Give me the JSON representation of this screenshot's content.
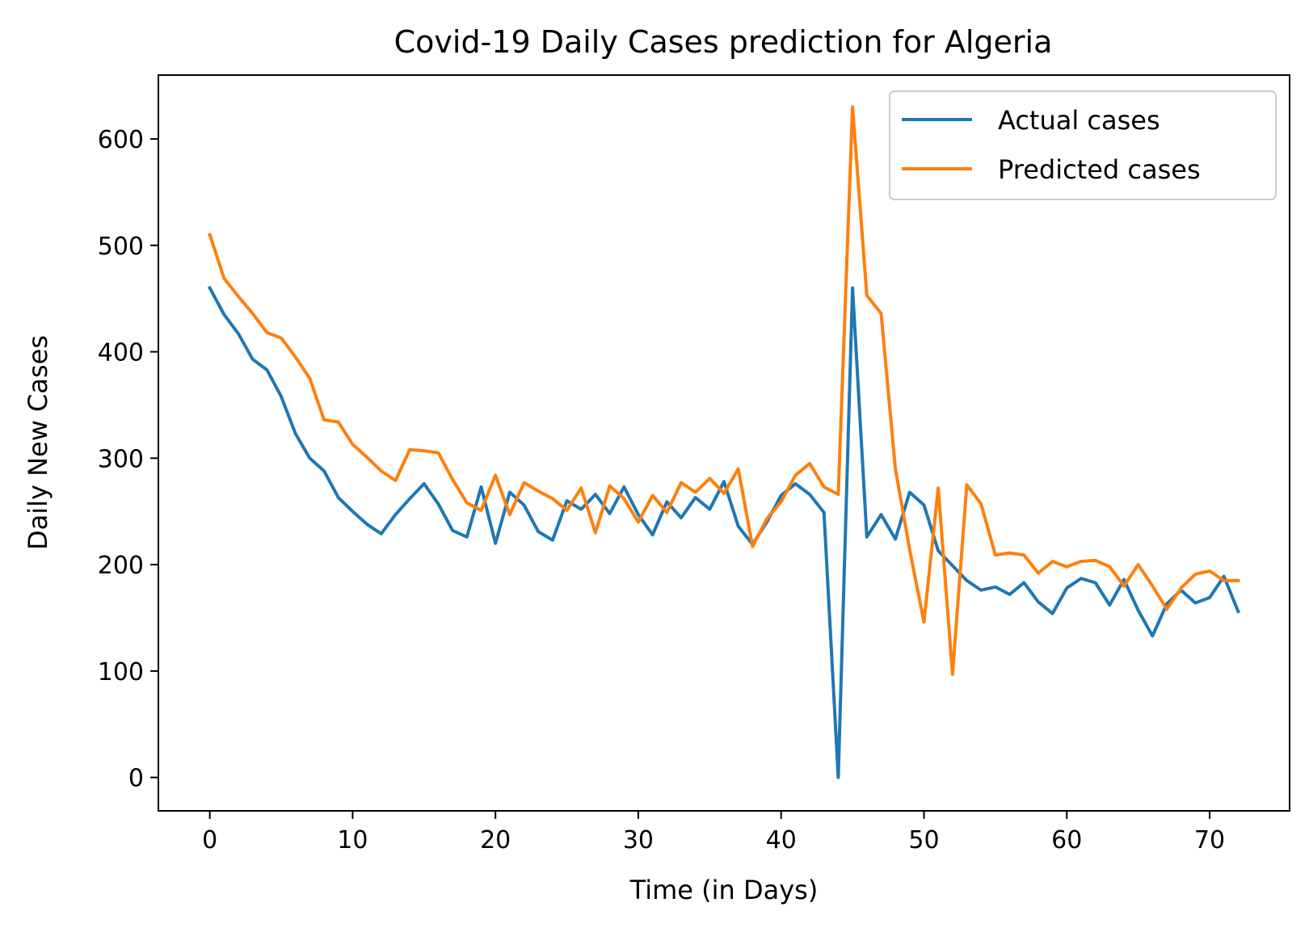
{
  "chart_data": {
    "type": "line",
    "title": "Covid-19 Daily Cases prediction for Algeria",
    "xlabel": "Time (in Days)",
    "ylabel": "Daily New Cases",
    "xlim": [
      -3.6,
      75.6
    ],
    "ylim": [
      -31.4,
      660
    ],
    "x_ticks": [
      0,
      10,
      20,
      30,
      40,
      50,
      60,
      70
    ],
    "y_ticks": [
      0,
      100,
      200,
      300,
      400,
      500,
      600
    ],
    "x_tick_labels": [
      "0",
      "10",
      "20",
      "30",
      "40",
      "50",
      "60",
      "70"
    ],
    "y_tick_labels": [
      "0",
      "100",
      "200",
      "300",
      "400",
      "500",
      "600"
    ],
    "grid": false,
    "legend_position": "top-right",
    "series": [
      {
        "name": "Actual cases",
        "color": "#1f77b4",
        "values": [
          460,
          435,
          417,
          393,
          383,
          358,
          323,
          300,
          288,
          263,
          250,
          238,
          229,
          247,
          262,
          276,
          257,
          232,
          226,
          273,
          220,
          268,
          256,
          231,
          223,
          260,
          252,
          266,
          248,
          273,
          247,
          228,
          259,
          244,
          263,
          252,
          278,
          236,
          219,
          240,
          265,
          276,
          266,
          249,
          0,
          460,
          226,
          247,
          224,
          268,
          256,
          213,
          199,
          185,
          176,
          179,
          172,
          183,
          165,
          154,
          178,
          187,
          183,
          162,
          186,
          157,
          133,
          163,
          176,
          164,
          169,
          189,
          156
        ]
      },
      {
        "name": "Predicted cases",
        "color": "#ff7f0e",
        "values": [
          510,
          469,
          452,
          436,
          418,
          413,
          395,
          375,
          336,
          334,
          313,
          301,
          288,
          279,
          308,
          307,
          305,
          280,
          258,
          251,
          284,
          247,
          277,
          269,
          262,
          251,
          272,
          230,
          274,
          262,
          240,
          265,
          249,
          277,
          268,
          281,
          267,
          290,
          217,
          243,
          259,
          284,
          295,
          273,
          266,
          630,
          453,
          436,
          290,
          214,
          146,
          272,
          97,
          275,
          257,
          209,
          211,
          209,
          192,
          203,
          198,
          203,
          204,
          198,
          180,
          200,
          180,
          158,
          178,
          191,
          194,
          185,
          185
        ]
      }
    ]
  }
}
